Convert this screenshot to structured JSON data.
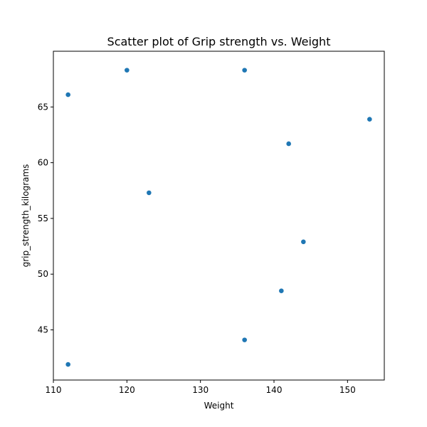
{
  "chart_data": {
    "type": "scatter",
    "title": "Scatter plot of Grip strength vs. Weight",
    "xlabel": "Weight",
    "ylabel": "grip_strength_kilograms",
    "xlim": [
      110,
      155
    ],
    "ylim": [
      40.5,
      70.0
    ],
    "xticks": [
      110,
      120,
      130,
      140,
      150
    ],
    "yticks": [
      45,
      50,
      55,
      60,
      65
    ],
    "grid": false,
    "marker_color": "#1f77b4",
    "points": [
      {
        "x": 112,
        "y": 66.1
      },
      {
        "x": 120,
        "y": 68.3
      },
      {
        "x": 136,
        "y": 68.3
      },
      {
        "x": 153,
        "y": 63.9
      },
      {
        "x": 142,
        "y": 61.7
      },
      {
        "x": 123,
        "y": 57.3
      },
      {
        "x": 144,
        "y": 52.9
      },
      {
        "x": 141,
        "y": 48.5
      },
      {
        "x": 136,
        "y": 44.1
      },
      {
        "x": 112,
        "y": 41.9
      }
    ]
  }
}
